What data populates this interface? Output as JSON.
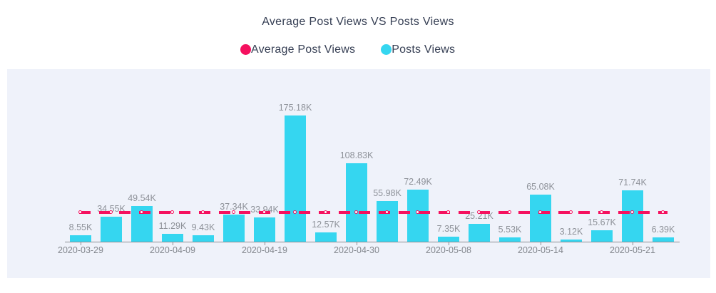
{
  "header": {
    "title": "Average Post Views VS Posts Views"
  },
  "legend": {
    "items": [
      {
        "label": "Average Post Views",
        "color": "#f5115f"
      },
      {
        "label": "Posts Views",
        "color": "#35d6f0"
      }
    ]
  },
  "colors": {
    "page_background": "#ffffff",
    "plot_background": "#eff2fa",
    "bar": "#35d6f0",
    "average_line": "#f5115f",
    "title_text": "#363f54",
    "value_label_text": "#8e9299",
    "axis_text": "#84888f",
    "axis_line": "#8a8d93"
  },
  "chart_data": {
    "type": "bar",
    "title": "Average Post Views VS Posts Views",
    "legend_position": "top",
    "grid": false,
    "plot_background": "#eff2fa",
    "x": {
      "tick_interval": 3,
      "tick_labels": [
        "2020-03-29",
        "2020-04-09",
        "2020-04-19",
        "2020-04-30",
        "2020-05-08",
        "2020-05-14",
        "2020-05-21"
      ]
    },
    "ylim_k": [
      0,
      175.18
    ],
    "series": [
      {
        "name": "Posts Views",
        "type": "bar",
        "color": "#35d6f0",
        "values_k": [
          8.55,
          34.55,
          49.54,
          11.29,
          9.43,
          37.34,
          33.94,
          175.18,
          12.57,
          108.83,
          55.98,
          72.49,
          7.35,
          25.21,
          5.53,
          65.08,
          3.12,
          15.67,
          71.74,
          6.39
        ],
        "value_labels": [
          "8.55K",
          "34.55K",
          "49.54K",
          "11.29K",
          "9.43K",
          "37.34K",
          "33.94K",
          "175.18K",
          "12.57K",
          "108.83K",
          "55.98K",
          "72.49K",
          "7.35K",
          "25.21K",
          "5.53K",
          "65.08K",
          "3.12K",
          "15.67K",
          "71.74K",
          "6.39K"
        ]
      },
      {
        "name": "Average Post Views",
        "type": "line",
        "line_style": "dashed",
        "marker": "empty-circle",
        "color": "#f5115f",
        "value_k": 40.49
      }
    ]
  }
}
